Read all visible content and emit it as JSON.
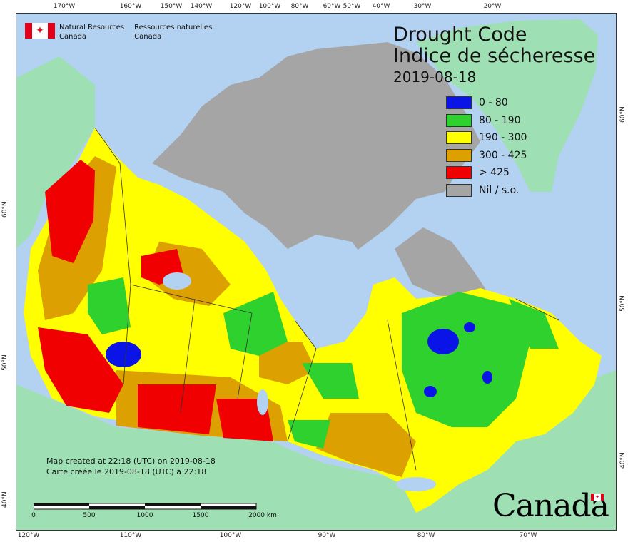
{
  "title_line1": "Drought Code",
  "title_line2": "Indice de sécheresse",
  "date": "2019-08-18",
  "agency": {
    "english_line1": "Natural Resources",
    "english_line2": "Canada",
    "french_line1": "Ressources naturelles",
    "french_line2": "Canada"
  },
  "legend": [
    {
      "label": "0 - 80",
      "color": "#0a14e6"
    },
    {
      "label": "80 - 190",
      "color": "#2ed12e"
    },
    {
      "label": "190 - 300",
      "color": "#ffff00"
    },
    {
      "label": "300 - 425",
      "color": "#dca000"
    },
    {
      "label": "> 425",
      "color": "#f00000"
    },
    {
      "label": "Nil / s.o.",
      "color": "#a5a5a5"
    }
  ],
  "map_created_en": "Map created at 22:18 (UTC) on 2019-08-18",
  "map_created_fr": "Carte créée le 2019-08-18 (UTC) à 22:18",
  "scale": {
    "labels": [
      "0",
      "500",
      "1000",
      "1500",
      "2000  km"
    ]
  },
  "top_ticks": [
    "170°W",
    "160°W",
    "150°W",
    "140°W",
    "120°W",
    "100°W",
    "80°W",
    "60°W",
    "50°W",
    "40°W",
    "30°W",
    "20°W"
  ],
  "bottom_ticks": [
    "120°W",
    "110°W",
    "100°W",
    "90°W",
    "80°W",
    "70°W"
  ],
  "left_ticks": [
    "60°N",
    "50°N",
    "40°N"
  ],
  "right_ticks": [
    "60°N",
    "50°N",
    "40°N"
  ],
  "wordmark": "Canada",
  "colors": {
    "ocean": "#b3d1f0",
    "land_outside": "#9ee0b4",
    "nil": "#a5a5a5",
    "border": "#333333"
  }
}
